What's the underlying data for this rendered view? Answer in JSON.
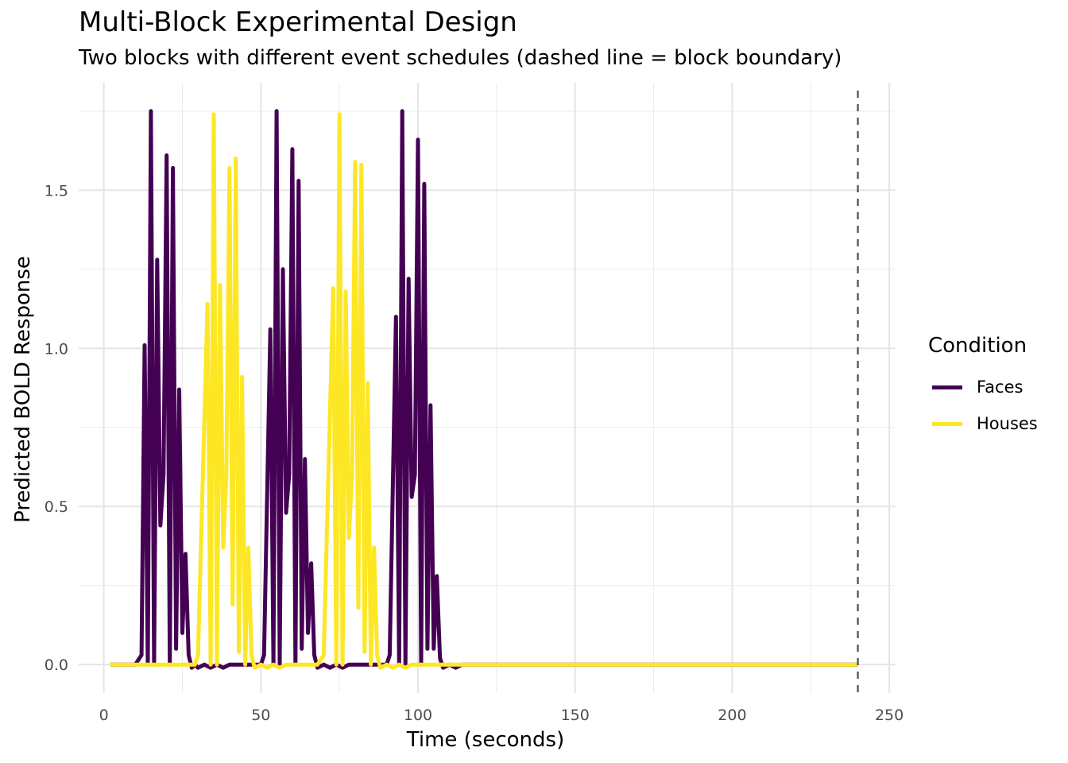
{
  "chart_data": {
    "type": "line",
    "title": "Multi-Block Experimental Design",
    "subtitle": "Two blocks with different event schedules (dashed line = block boundary)",
    "xlabel": "Time (seconds)",
    "ylabel": "Predicted BOLD Response",
    "xlim": [
      -8,
      252
    ],
    "ylim": [
      -0.09,
      1.84
    ],
    "x_ticks": [
      0,
      50,
      100,
      150,
      200,
      250
    ],
    "x_tick_labels": [
      "0",
      "50",
      "100",
      "150",
      "200",
      "250"
    ],
    "y_ticks": [
      0.0,
      0.5,
      1.0,
      1.5
    ],
    "y_tick_labels": [
      "0.0",
      "0.5",
      "1.0",
      "1.5"
    ],
    "grid": true,
    "legend": {
      "title": "Condition",
      "position": "right"
    },
    "block_boundary_x": 240,
    "series": [
      {
        "name": "Faces",
        "color": "#440154",
        "points": [
          [
            2,
            0
          ],
          [
            10,
            0
          ],
          [
            12,
            0.03
          ],
          [
            13,
            1.01
          ],
          [
            14,
            0
          ],
          [
            15,
            1.75
          ],
          [
            16,
            0
          ],
          [
            17,
            1.28
          ],
          [
            18,
            0.44
          ],
          [
            19,
            0.6
          ],
          [
            20,
            1.61
          ],
          [
            21,
            0
          ],
          [
            22,
            1.57
          ],
          [
            23,
            0.05
          ],
          [
            24,
            0.87
          ],
          [
            25,
            0.1
          ],
          [
            26,
            0.35
          ],
          [
            27,
            0.03
          ],
          [
            28,
            -0.01
          ],
          [
            29,
            0
          ],
          [
            30,
            -0.01
          ],
          [
            32,
            0
          ],
          [
            34,
            -0.01
          ],
          [
            36,
            0
          ],
          [
            38,
            -0.01
          ],
          [
            40,
            0
          ],
          [
            50,
            0
          ],
          [
            51,
            0.03
          ],
          [
            53,
            1.06
          ],
          [
            54,
            0
          ],
          [
            55,
            1.75
          ],
          [
            56,
            0
          ],
          [
            57,
            1.25
          ],
          [
            58,
            0.48
          ],
          [
            59,
            0.6
          ],
          [
            60,
            1.63
          ],
          [
            61,
            0
          ],
          [
            62,
            1.53
          ],
          [
            63,
            0.05
          ],
          [
            64,
            0.65
          ],
          [
            65,
            0.1
          ],
          [
            66,
            0.32
          ],
          [
            67,
            0.03
          ],
          [
            68,
            -0.01
          ],
          [
            70,
            0
          ],
          [
            72,
            -0.01
          ],
          [
            74,
            0
          ],
          [
            76,
            -0.01
          ],
          [
            78,
            0
          ],
          [
            90,
            0
          ],
          [
            91,
            0.03
          ],
          [
            93,
            1.1
          ],
          [
            94,
            0
          ],
          [
            95,
            1.75
          ],
          [
            96,
            0
          ],
          [
            97,
            1.22
          ],
          [
            98,
            0.53
          ],
          [
            99,
            0.6
          ],
          [
            100,
            1.66
          ],
          [
            101,
            0
          ],
          [
            102,
            1.52
          ],
          [
            103,
            0.05
          ],
          [
            104,
            0.82
          ],
          [
            105,
            0.05
          ],
          [
            106,
            0.28
          ],
          [
            107,
            0.02
          ],
          [
            108,
            -0.01
          ],
          [
            110,
            0
          ],
          [
            112,
            -0.01
          ],
          [
            114,
            0
          ],
          [
            118,
            0
          ],
          [
            240,
            0
          ]
        ]
      },
      {
        "name": "Houses",
        "color": "#fde725",
        "points": [
          [
            2,
            0
          ],
          [
            29,
            0
          ],
          [
            30,
            0.03
          ],
          [
            33,
            1.14
          ],
          [
            34,
            0
          ],
          [
            35,
            1.74
          ],
          [
            36,
            0
          ],
          [
            37,
            1.2
          ],
          [
            38,
            0.37
          ],
          [
            39,
            0.6
          ],
          [
            40,
            1.57
          ],
          [
            41,
            0.19
          ],
          [
            42,
            1.6
          ],
          [
            43,
            0.04
          ],
          [
            44,
            0.91
          ],
          [
            45,
            0
          ],
          [
            46,
            0.37
          ],
          [
            47,
            0.03
          ],
          [
            48,
            -0.01
          ],
          [
            50,
            0
          ],
          [
            52,
            -0.01
          ],
          [
            54,
            0
          ],
          [
            56,
            -0.01
          ],
          [
            58,
            0
          ],
          [
            68,
            0
          ],
          [
            70,
            0.03
          ],
          [
            73,
            1.19
          ],
          [
            74,
            0
          ],
          [
            75,
            1.74
          ],
          [
            76,
            0
          ],
          [
            77,
            1.18
          ],
          [
            78,
            0.4
          ],
          [
            79,
            0.6
          ],
          [
            80,
            1.59
          ],
          [
            81,
            0.18
          ],
          [
            82,
            1.58
          ],
          [
            83,
            0.04
          ],
          [
            84,
            0.89
          ],
          [
            85,
            0
          ],
          [
            86,
            0.37
          ],
          [
            87,
            0.03
          ],
          [
            88,
            -0.01
          ],
          [
            90,
            0
          ],
          [
            92,
            -0.01
          ],
          [
            94,
            0
          ],
          [
            96,
            -0.01
          ],
          [
            98,
            0
          ],
          [
            240,
            0
          ]
        ]
      }
    ]
  }
}
